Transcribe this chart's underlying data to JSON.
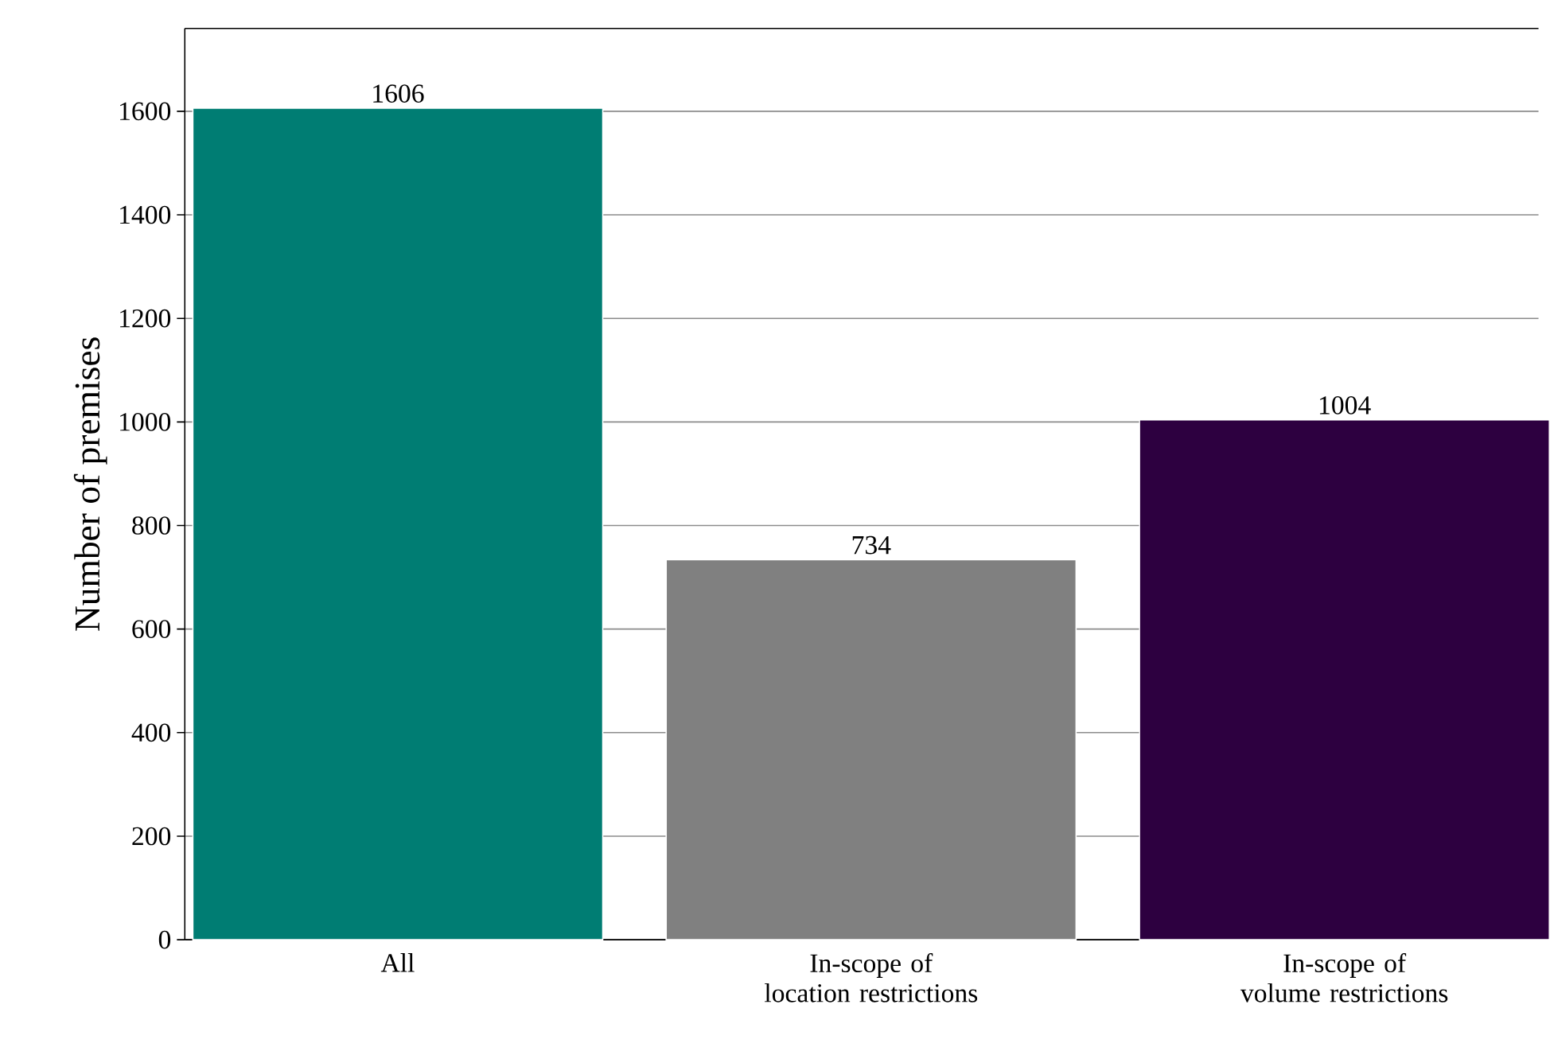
{
  "chart_data": {
    "type": "bar",
    "ylabel": "Number of premises",
    "categories": [
      "All",
      "In-scope of location restrictions",
      "In-scope of volume restrictions"
    ],
    "values": [
      1606,
      734,
      1004
    ],
    "colors": [
      "#007d73",
      "#808080",
      "#2d0040"
    ],
    "ylim": [
      0,
      1760
    ],
    "yticks": [
      0,
      200,
      400,
      600,
      800,
      1000,
      1200,
      1400,
      1600
    ],
    "grid": "y",
    "data_labels": true
  }
}
